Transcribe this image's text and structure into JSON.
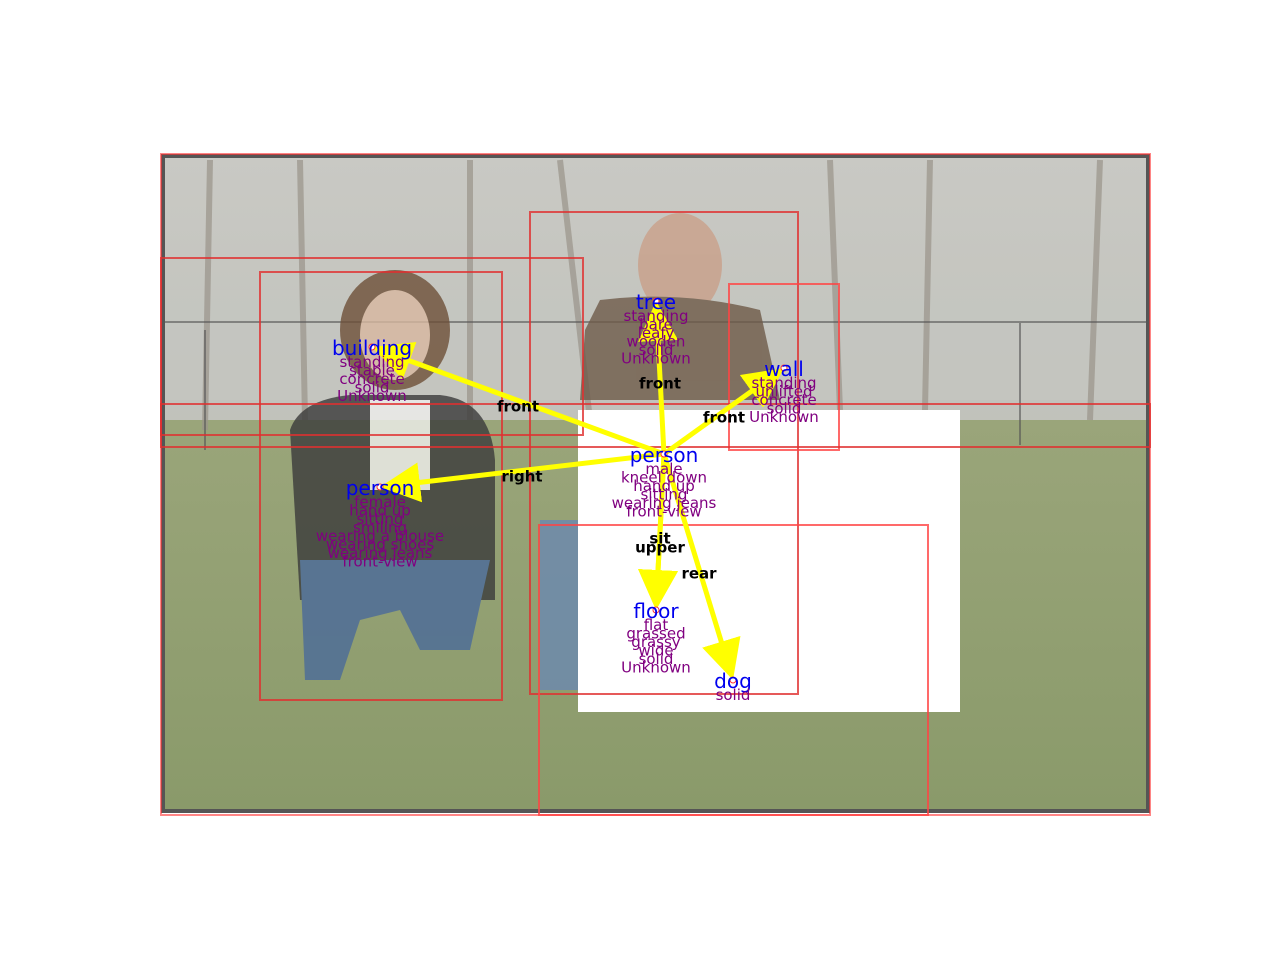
{
  "colors": {
    "object_label": "#0000ee",
    "attribute_label": "#800080",
    "relation_label": "#000000",
    "relation_arrow": "#ffff00",
    "bounding_box": "#ff3333",
    "photo_frame": "#555555",
    "background": "#ffffff"
  },
  "objects": [
    {
      "id": "obj-building",
      "name": "building",
      "attributes": [
        "standing",
        "stable",
        "concrete",
        "solid",
        "Unknown"
      ]
    },
    {
      "id": "obj-tree",
      "name": "tree",
      "attributes": [
        "standing",
        "bare",
        "leafy",
        "wooden",
        "solid",
        "Unknown"
      ]
    },
    {
      "id": "obj-wall",
      "name": "wall",
      "attributes": [
        "standing",
        "unlifted",
        "concrete",
        "solid",
        "Unknown"
      ]
    },
    {
      "id": "obj-person-man",
      "name": "person",
      "attributes": [
        "male",
        "kneel down",
        "hand up",
        "sitting",
        "wearing jeans",
        "front-view"
      ]
    },
    {
      "id": "obj-person-woman",
      "name": "person",
      "attributes": [
        "female",
        "hand up",
        "sitting",
        "smiling",
        "wearing a blouse",
        "wearing shoes",
        "wearing jeans",
        "front-view"
      ]
    },
    {
      "id": "obj-floor",
      "name": "floor",
      "attributes": [
        "flat",
        "grassed",
        "grassy",
        "wide",
        "solid",
        "Unknown"
      ]
    },
    {
      "id": "obj-dog",
      "name": "dog",
      "attributes": [
        "solid"
      ]
    }
  ],
  "relations": [
    {
      "from": "obj-person-man",
      "to": "obj-building",
      "label": "front"
    },
    {
      "from": "obj-person-man",
      "to": "obj-tree",
      "label": "front"
    },
    {
      "from": "obj-person-man",
      "to": "obj-wall",
      "label": "front"
    },
    {
      "from": "obj-person-man",
      "to": "obj-person-woman",
      "label": "right"
    },
    {
      "from": "obj-person-man",
      "to": "obj-floor",
      "label": "sit"
    },
    {
      "from": "obj-person-man",
      "to": "obj-floor",
      "label": "upper"
    },
    {
      "from": "obj-person-man",
      "to": "obj-dog",
      "label": "rear"
    }
  ]
}
